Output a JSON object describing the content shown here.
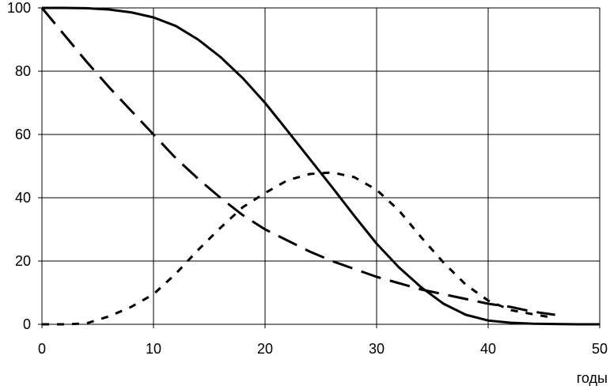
{
  "chart_data": {
    "type": "line",
    "title": "",
    "xlabel": "годы",
    "ylabel": "",
    "xlim": [
      0,
      50
    ],
    "ylim": [
      0,
      100
    ],
    "grid": true,
    "legend": "none",
    "x_ticks": [
      0,
      10,
      20,
      30,
      40,
      50
    ],
    "y_ticks": [
      0,
      20,
      40,
      60,
      80,
      100
    ],
    "colors": {
      "line": "#000000",
      "grid": "#000000",
      "background": "#ffffff"
    },
    "series": [
      {
        "style": "solid",
        "x": [
          0,
          2,
          4,
          6,
          8,
          10,
          12,
          14,
          16,
          18,
          20,
          22,
          24,
          26,
          28,
          30,
          32,
          34,
          36,
          38,
          40,
          42,
          44,
          46,
          48,
          50
        ],
        "y": [
          100,
          100,
          99.9,
          99.5,
          98.6,
          97,
          94.3,
          90,
          84.5,
          77.8,
          70,
          61.2,
          52.3,
          43.4,
          34.3,
          25.5,
          18,
          11.7,
          6.5,
          3,
          1.2,
          0.5,
          0.2,
          0.1,
          0,
          0
        ]
      },
      {
        "style": "long-dash",
        "x": [
          0,
          2,
          4,
          6,
          8,
          10,
          12,
          14,
          16,
          18,
          20,
          22,
          24,
          26,
          28,
          30,
          32,
          34,
          36,
          38,
          40,
          42,
          44,
          46
        ],
        "y": [
          100,
          91.5,
          83,
          75,
          67.5,
          60,
          52.5,
          46,
          40,
          34.5,
          30,
          26.5,
          23,
          20,
          17.5,
          15,
          13,
          11,
          9.5,
          8,
          6.5,
          5.5,
          4,
          3
        ]
      },
      {
        "style": "short-dash",
        "x": [
          0,
          2,
          4,
          6,
          8,
          10,
          12,
          14,
          16,
          18,
          20,
          22,
          24,
          26,
          28,
          30,
          32,
          34,
          36,
          38,
          40,
          42,
          44,
          46
        ],
        "y": [
          0,
          0,
          0.3,
          2.5,
          5.5,
          9.5,
          16,
          23.5,
          30.5,
          37,
          41.5,
          45.5,
          47.5,
          48,
          46.5,
          42.5,
          36,
          27.5,
          19.5,
          12.5,
          7.5,
          4.5,
          3.2,
          2
        ]
      }
    ]
  }
}
